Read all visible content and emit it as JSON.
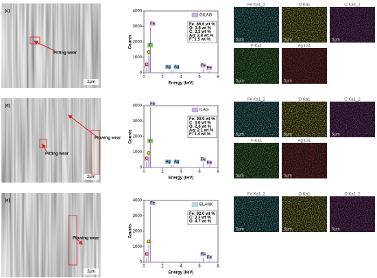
{
  "panels": [
    {
      "label": "(c)",
      "sem": {
        "scale": "2μm",
        "annotations": [
          "Pitting wear"
        ]
      },
      "spectrum": {
        "type": "stick",
        "ylabel": "Counts",
        "xlabel": "Energy  (keV)",
        "legend": "GILAG",
        "legend_color": "#c9b3e6",
        "color": "#9a7fc0",
        "xlim": [
          0,
          8
        ],
        "xticks": [
          0,
          2,
          4,
          6,
          8
        ],
        "ylim": [
          0,
          4000
        ],
        "yticks": [
          0,
          1000,
          2000,
          3000,
          4000
        ],
        "composition": [
          "Fe: 86.6 wt %",
          "O: 3.8 wt %",
          "C: 3.3 wt %",
          "Ag: 2.8 wt %",
          "F: 1.5 wt %"
        ],
        "peaks": [
          {
            "label": "C",
            "energy": 0.28,
            "counts": 300,
            "color": "#e8a0b0"
          },
          {
            "label": "O",
            "energy": 0.52,
            "counts": 1100,
            "color": "#f5e642"
          },
          {
            "label": "F",
            "energy": 0.68,
            "counts": 1550,
            "color": "#7ad04c"
          },
          {
            "label": "Fe",
            "energy": 0.71,
            "counts": 2950,
            "color": "#c9b3e6"
          },
          {
            "label": "Ag",
            "energy": 2.98,
            "counts": 150,
            "color": "#7fb2e5"
          },
          {
            "label": "Ag",
            "energy": 3.15,
            "counts": 150,
            "color": "#7fb2e5"
          },
          {
            "label": "Fe",
            "energy": 6.4,
            "counts": 250,
            "color": "#c9b3e6"
          },
          {
            "label": "Fe",
            "energy": 7.06,
            "counts": 100,
            "color": "#c9b3e6"
          }
        ]
      },
      "map_scale": "5μm",
      "maps": [
        {
          "label": "Fe Ka1_2",
          "color": "#3fd0d8"
        },
        {
          "label": "O Ka1",
          "color": "#e8e23a"
        },
        {
          "label": "C Ka1_2",
          "color": "#c040c8"
        },
        {
          "label": "F Ka1",
          "color": "#4cd040"
        },
        {
          "label": "Ag La1",
          "color": "#d83030"
        }
      ]
    },
    {
      "label": "(d)",
      "sem": {
        "scale": "2μm",
        "annotations": [
          "Plowing wear",
          "Pitting wear"
        ]
      },
      "spectrum": {
        "type": "stick",
        "ylabel": "Counts",
        "xlabel": "Energy  (keV)",
        "legend": "ILAG",
        "legend_color": "#c9b3e6",
        "color": "#9a7fc0",
        "xlim": [
          0,
          8
        ],
        "xticks": [
          0,
          2,
          4,
          6,
          8
        ],
        "ylim": [
          0,
          4000
        ],
        "yticks": [
          0,
          1000,
          2000,
          3000,
          4000
        ],
        "composition": [
          "Fe: 90.9 wt %",
          "C: 3.0 wt %",
          "O: 2.6 wt %",
          "Ag: 2.1 wt %",
          "F: 1.4 wt %"
        ],
        "peaks": [
          {
            "label": "C",
            "energy": 0.28,
            "counts": 350,
            "color": "#e8a0b0"
          },
          {
            "label": "O",
            "energy": 0.52,
            "counts": 700,
            "color": "#f5e642"
          },
          {
            "label": "F",
            "energy": 0.68,
            "counts": 1500,
            "color": "#7ad04c"
          },
          {
            "label": "Fe",
            "energy": 0.71,
            "counts": 3900,
            "color": "#c9b3e6"
          },
          {
            "label": "Ag",
            "energy": 2.98,
            "counts": 150,
            "color": "#7fb2e5"
          },
          {
            "label": "Ag",
            "energy": 3.15,
            "counts": 150,
            "color": "#7fb2e5"
          },
          {
            "label": "Fe",
            "energy": 6.4,
            "counts": 300,
            "color": "#c9b3e6"
          },
          {
            "label": "Fe",
            "energy": 7.06,
            "counts": 100,
            "color": "#c9b3e6"
          }
        ]
      },
      "map_scale": "5μm",
      "maps": [
        {
          "label": "Fe Ka1_2",
          "color": "#3fd0d8"
        },
        {
          "label": "O Ka1",
          "color": "#e8e23a"
        },
        {
          "label": "C Ka1_2",
          "color": "#c040c8"
        },
        {
          "label": "F Ka1",
          "color": "#4cd040"
        },
        {
          "label": "Ag La1",
          "color": "#d83030"
        }
      ]
    },
    {
      "label": "(e)",
      "sem": {
        "scale": "2μm",
        "annotations": [
          "Plowing wear"
        ]
      },
      "spectrum": {
        "type": "stick",
        "ylabel": "Counts",
        "xlabel": "Energy  (keV)",
        "legend": "BLANK",
        "legend_color": "#b8dce8",
        "color": "#9a7fc0",
        "xlim": [
          0,
          8
        ],
        "xticks": [
          0,
          2,
          4,
          6,
          8
        ],
        "ylim": [
          0,
          4000
        ],
        "yticks": [
          0,
          1000,
          2000,
          3000,
          4000
        ],
        "composition": [
          "Fe: 92.0 wt %",
          "C: 3.3 wt %",
          "O: 4.7 wt %"
        ],
        "peaks": [
          {
            "label": "C",
            "energy": 0.28,
            "counts": 300,
            "color": "#e8a0b0"
          },
          {
            "label": "O",
            "energy": 0.52,
            "counts": 1100,
            "color": "#f5e642"
          },
          {
            "label": "Fe",
            "energy": 0.71,
            "counts": 3600,
            "color": "#c9b3e6"
          },
          {
            "label": "Fe",
            "energy": 6.4,
            "counts": 300,
            "color": "#c9b3e6"
          },
          {
            "label": "Fe",
            "energy": 7.06,
            "counts": 100,
            "color": "#c9b3e6"
          }
        ]
      },
      "map_scale": "5μm",
      "maps": [
        {
          "label": "Fe Ka1_2",
          "color": "#3fd0d8"
        },
        {
          "label": "O Ka1",
          "color": "#e8e23a"
        },
        {
          "label": "C Ka1_2",
          "color": "#c040c8"
        }
      ]
    }
  ]
}
